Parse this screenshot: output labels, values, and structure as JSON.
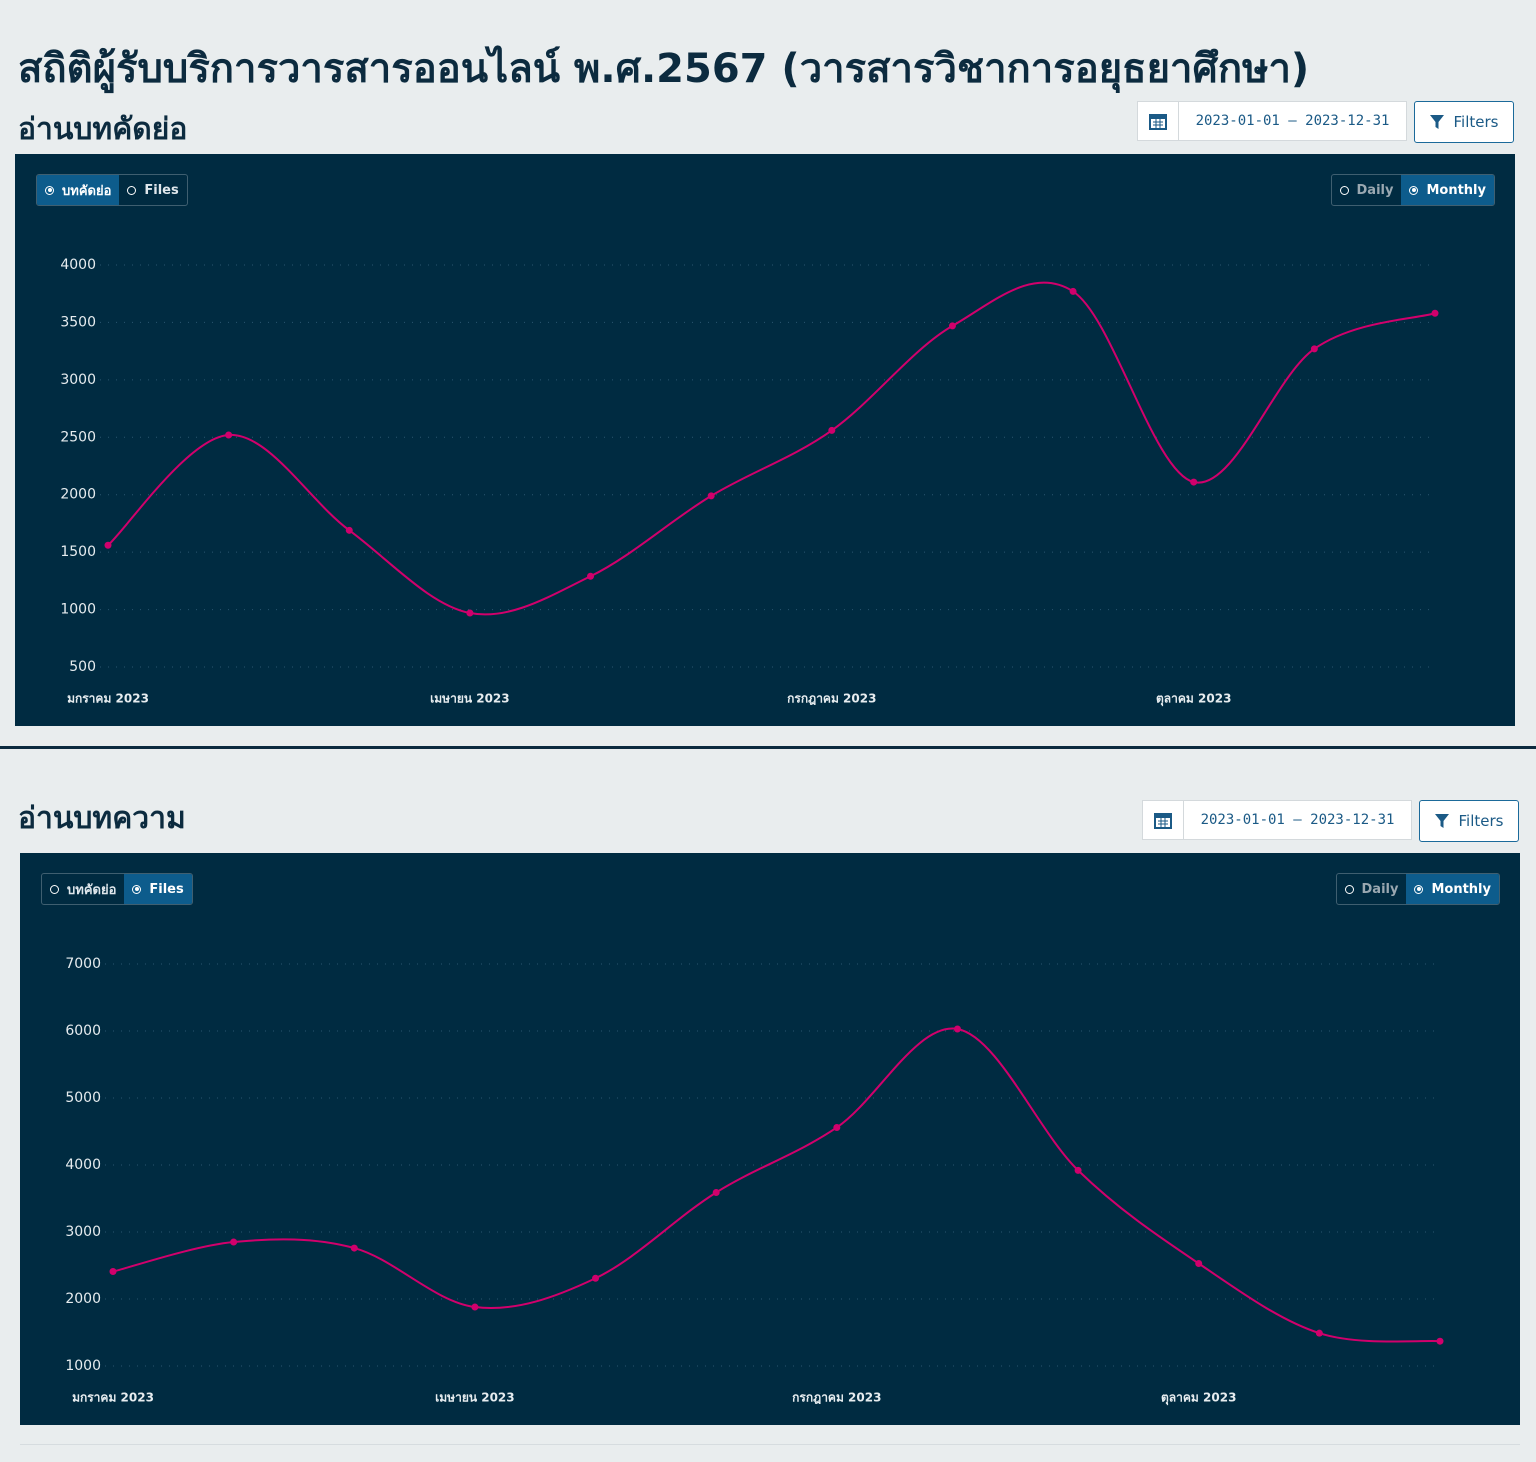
{
  "title": "สถิติผู้รับบริการวารสารออนไลน์ พ.ศ.2567 (วารสารวิชาการอยุธยาศึกษา)",
  "sections": [
    {
      "heading": "อ่านบทคัดย่อ",
      "date_range": "2023-01-01 — 2023-12-31",
      "filters": "Filters",
      "toggle_type": [
        "บทคัดย่อ",
        "Files"
      ],
      "type_selected": 0,
      "toggle_period": [
        "Daily",
        "Monthly"
      ],
      "period_selected": 1
    },
    {
      "heading": "อ่านบทความ",
      "date_range": "2023-01-01 — 2023-12-31",
      "filters": "Filters",
      "toggle_type": [
        "บทคัดย่อ",
        "Files"
      ],
      "type_selected": 1,
      "toggle_period": [
        "Daily",
        "Monthly"
      ],
      "period_selected": 1
    }
  ],
  "chart_data": [
    {
      "type": "line",
      "categories": [
        "มกราคม 2023",
        null,
        null,
        "เมษายน 2023",
        null,
        null,
        "กรกฎาคม 2023",
        null,
        null,
        "ตุลาคม 2023",
        null,
        null
      ],
      "series": [
        {
          "name": "บทคัดย่อ",
          "color": "#d1006c",
          "values": [
            1560,
            2520,
            1690,
            970,
            1290,
            1990,
            2560,
            3470,
            3770,
            2110,
            3270,
            3580
          ]
        }
      ],
      "ylim": [
        500,
        4000
      ],
      "yticks": [
        500,
        1000,
        1500,
        2000,
        2500,
        3000,
        3500,
        4000
      ],
      "grid": true
    },
    {
      "type": "line",
      "categories": [
        "มกราคม 2023",
        null,
        null,
        "เมษายน 2023",
        null,
        null,
        "กรกฎาคม 2023",
        null,
        null,
        "ตุลาคม 2023",
        null,
        null
      ],
      "series": [
        {
          "name": "Files",
          "color": "#d1006c",
          "values": [
            2410,
            2850,
            2760,
            1880,
            2310,
            3590,
            4560,
            6030,
            3920,
            2530,
            1490,
            1370
          ]
        }
      ],
      "ylim": [
        1000,
        7000
      ],
      "yticks": [
        1000,
        2000,
        3000,
        4000,
        5000,
        6000,
        7000
      ],
      "grid": true
    }
  ]
}
